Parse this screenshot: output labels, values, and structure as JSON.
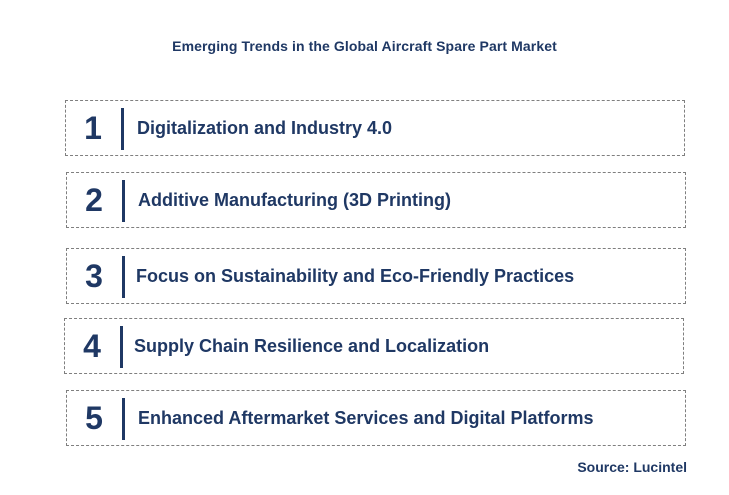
{
  "title": "Emerging Trends in the Global Aircraft Spare Part Market",
  "trends": [
    {
      "number": "1",
      "label": "Digitalization and Industry 4.0"
    },
    {
      "number": "2",
      "label": "Additive Manufacturing (3D Printing)"
    },
    {
      "number": "3",
      "label": "Focus on Sustainability and Eco-Friendly Practices"
    },
    {
      "number": "4",
      "label": "Supply Chain Resilience and Localization"
    },
    {
      "number": "5",
      "label": "Enhanced Aftermarket Services and Digital Platforms"
    }
  ],
  "source": "Source: Lucintel",
  "colors": {
    "text": "#1f3864",
    "border": "#7f7f7f"
  }
}
